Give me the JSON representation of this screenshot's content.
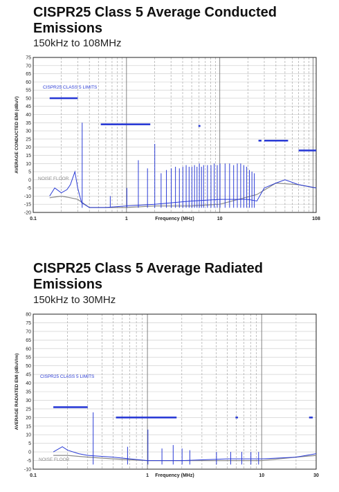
{
  "chart_data": [
    {
      "type": "line",
      "title": "CISPR25 Class 5 Average Conducted Emissions",
      "subtitle": "150kHz to 108MHz",
      "xlabel": "Frequency (MHz)",
      "ylabel": "AVERAGE CONDUCTED EMI (dBuV)",
      "xscale": "log",
      "xlim": [
        0.1,
        108
      ],
      "ylim": [
        -20,
        75
      ],
      "x_tick_labels": [
        {
          "x": 0.1,
          "label": "0.1"
        },
        {
          "x": 1,
          "label": "1"
        },
        {
          "x": 10,
          "label": "10"
        },
        {
          "x": 108,
          "label": "108"
        }
      ],
      "y_ticks": [
        75,
        70,
        65,
        60,
        55,
        50,
        45,
        40,
        35,
        30,
        25,
        20,
        15,
        10,
        5,
        0,
        -5,
        -10,
        -15,
        -20
      ],
      "grid": true,
      "annotations": [
        {
          "text": "CISPR25 CLASS 5 LIMITS",
          "color": "#2a3bd6"
        },
        {
          "text": "NOISE FLOOR",
          "color": "#888888"
        }
      ],
      "limits": [
        {
          "x": [
            0.15,
            0.3
          ],
          "y": 50
        },
        {
          "x": [
            0.53,
            1.8
          ],
          "y": 34
        },
        {
          "x": [
            5.9,
            6.2
          ],
          "y": 33
        },
        {
          "x": [
            26,
            28
          ],
          "y": 24
        },
        {
          "x": [
            30,
            54
          ],
          "y": 24
        },
        {
          "x": [
            70,
            108
          ],
          "y": 18
        }
      ],
      "noise_floor": {
        "x": [
          0.15,
          0.2,
          0.25,
          0.3,
          0.4,
          0.6,
          1,
          2,
          5,
          10,
          25,
          40,
          70,
          108
        ],
        "y": [
          -11,
          -10,
          -11,
          -12,
          -17,
          -17,
          -17,
          -16,
          -16,
          -15,
          -9,
          -2,
          -3,
          -5
        ]
      },
      "emission": {
        "x": [
          0.15,
          0.17,
          0.2,
          0.23,
          0.25,
          0.28,
          0.3,
          0.33,
          0.4,
          0.6,
          1,
          2,
          5,
          10,
          20,
          25,
          30,
          40,
          50,
          70,
          108
        ],
        "y": [
          -10,
          -5,
          -8,
          -6,
          -3,
          5,
          -5,
          -14,
          -17,
          -17,
          -16,
          -15,
          -13,
          -12,
          -12,
          -13,
          -5,
          -2,
          0,
          -3,
          -5
        ]
      },
      "spikes": {
        "x": [
          0.335,
          0.67,
          1.01,
          1.34,
          1.68,
          2.01,
          2.35,
          2.68,
          3.02,
          3.35,
          3.69,
          4.02,
          4.36,
          4.69,
          5.03,
          5.36,
          5.7,
          6.04,
          6.37,
          6.71,
          7.38,
          8.05,
          8.72,
          9.39,
          10.06,
          11.4,
          12.74,
          14.08,
          15.42,
          16.76,
          18.1,
          19.44,
          20.78,
          22.12,
          23.46
        ],
        "y": [
          35,
          -10,
          -5,
          12,
          7,
          22,
          4,
          6,
          7,
          8,
          7,
          8,
          9,
          8,
          8,
          9,
          8,
          10,
          8,
          9,
          9,
          9,
          10,
          9,
          10,
          10,
          10,
          9,
          10,
          10,
          9,
          8,
          6,
          5,
          4
        ]
      }
    },
    {
      "type": "line",
      "title": "CISPR25 Class 5 Average Radiated Emissions",
      "subtitle": "150kHz to 30MHz",
      "xlabel": "Frequency (MHz)",
      "ylabel": "AVERAGE RADIATED EMI (dBuV/m)",
      "xscale": "log",
      "xlim": [
        0.1,
        30
      ],
      "ylim": [
        -10,
        80
      ],
      "x_tick_labels": [
        {
          "x": 0.1,
          "label": "0.1"
        },
        {
          "x": 1,
          "label": "1"
        },
        {
          "x": 10,
          "label": "10"
        },
        {
          "x": 30,
          "label": "30"
        }
      ],
      "y_ticks": [
        80,
        75,
        70,
        65,
        60,
        55,
        50,
        45,
        40,
        35,
        30,
        25,
        20,
        15,
        10,
        5,
        0,
        -5,
        -10
      ],
      "grid": true,
      "annotations": [
        {
          "text": "CISPR25 CLASS 5 LIMITS",
          "color": "#2a3bd6"
        },
        {
          "text": "NOISE FLOOR",
          "color": "#888888"
        }
      ],
      "limits": [
        {
          "x": [
            0.15,
            0.3
          ],
          "y": 26
        },
        {
          "x": [
            0.53,
            1.8
          ],
          "y": 20
        },
        {
          "x": [
            5.9,
            6.2
          ],
          "y": 20
        },
        {
          "x": [
            26,
            28
          ],
          "y": 20
        }
      ],
      "noise_floor": {
        "x": [
          0.15,
          0.2,
          0.3,
          0.5,
          1,
          2,
          5,
          10,
          20,
          30
        ],
        "y": [
          -2,
          -2,
          -3,
          -4,
          -5,
          -5,
          -5,
          -5,
          -3,
          -2
        ]
      },
      "emission": {
        "x": [
          0.15,
          0.18,
          0.2,
          0.25,
          0.3,
          0.5,
          1,
          2,
          5,
          10,
          20,
          30
        ],
        "y": [
          0,
          3,
          1,
          -1,
          -2,
          -3,
          -5,
          -5,
          -4,
          -4,
          -3,
          -1
        ]
      },
      "spikes": {
        "x": [
          0.335,
          0.67,
          1.01,
          1.34,
          1.68,
          2.01,
          2.35,
          4.02,
          5.36,
          6.7,
          8.05,
          9.4
        ],
        "y": [
          23,
          3,
          13,
          2,
          4,
          2,
          1,
          0,
          0,
          0,
          0,
          0
        ]
      }
    }
  ]
}
